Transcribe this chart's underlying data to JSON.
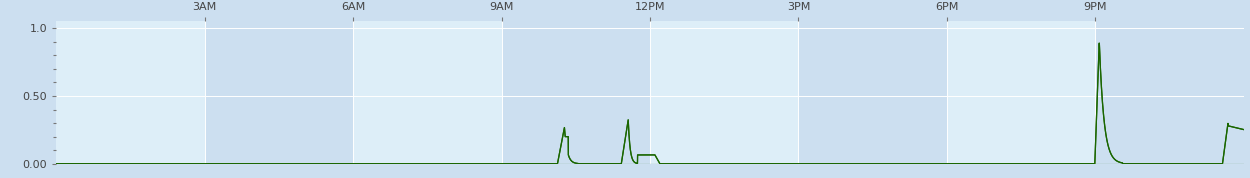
{
  "title": "",
  "xlim": [
    0,
    24
  ],
  "ylim": [
    0.0,
    1.05
  ],
  "yticks": [
    0.0,
    0.5,
    1.0
  ],
  "ytick_labels": [
    "0.00",
    "0.50",
    "1.0"
  ],
  "xticks": [
    3,
    6,
    9,
    12,
    15,
    18,
    21
  ],
  "xtick_labels": [
    "3AM",
    "6AM",
    "9AM",
    "12PM",
    "3PM",
    "6PM",
    "9PM"
  ],
  "bg_color": "#ccdff0",
  "plot_bg_color": "#ddeef8",
  "line_color": "#1a6600",
  "grid_color": "#ffffff",
  "figsize": [
    12.5,
    1.78
  ],
  "dpi": 100,
  "alt_col_color": "#ccdff0",
  "font_color": "#444444"
}
